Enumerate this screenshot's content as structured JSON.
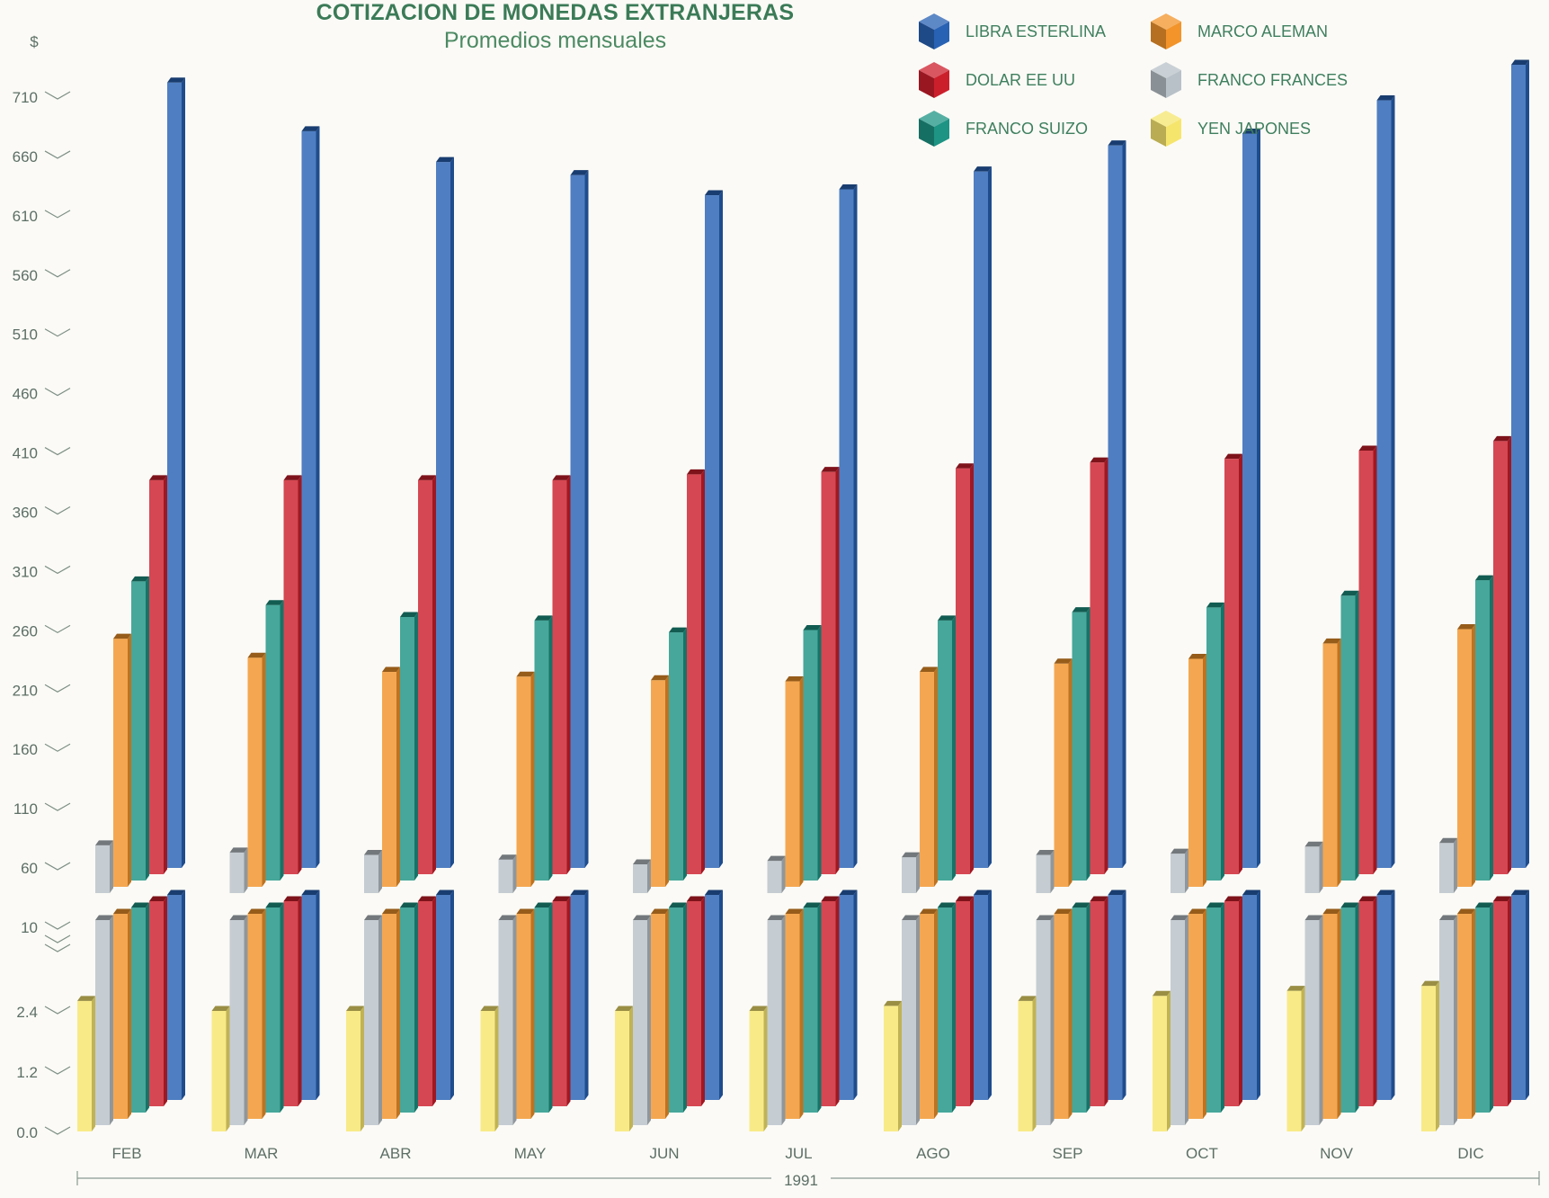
{
  "chart_data": {
    "type": "bar",
    "title": "COTIZACION DE MONEDAS EXTRANJERAS",
    "subtitle": "Promedios mensuales",
    "ylabel": "$",
    "xlabel": "1991",
    "categories": [
      "FEB",
      "MAR",
      "ABR",
      "MAY",
      "JUN",
      "JUL",
      "AGO",
      "SEP",
      "OCT",
      "NOV",
      "DIC"
    ],
    "y_ticks_upper": [
      "710",
      "660",
      "610",
      "560",
      "510",
      "460",
      "410",
      "360",
      "310",
      "260",
      "210",
      "160",
      "110",
      "60",
      "10"
    ],
    "y_ticks_lower": [
      "2.4",
      "1.2",
      "0.0"
    ],
    "axis_break_between": [
      2.4,
      10
    ],
    "legend_placement": "top-right",
    "grid": false,
    "series": [
      {
        "name": "YEN JAPONES",
        "color": "#f6e56d",
        "values": [
          2.6,
          2.4,
          2.4,
          2.4,
          2.4,
          2.4,
          2.5,
          2.6,
          2.7,
          2.8,
          2.9
        ]
      },
      {
        "name": "FRANCO FRANCES",
        "color": "#b8c1c8",
        "values": [
          73,
          67,
          65,
          61,
          57,
          60,
          63,
          65,
          66,
          72,
          75
        ]
      },
      {
        "name": "MARCO ALEMAN",
        "color": "#f2942a",
        "values": [
          242,
          226,
          214,
          210,
          207,
          206,
          214,
          221,
          225,
          238,
          250
        ]
      },
      {
        "name": "FRANCO SUIZO",
        "color": "#1d9484",
        "values": [
          285,
          265,
          255,
          252,
          242,
          244,
          252,
          259,
          263,
          273,
          286
        ]
      },
      {
        "name": "DOLAR EE UU",
        "color": "#cc1f2c",
        "values": [
          365,
          365,
          365,
          365,
          370,
          372,
          375,
          380,
          383,
          390,
          398
        ]
      },
      {
        "name": "LIBRA ESTERLINA",
        "color": "#2862b4",
        "values": [
          695,
          654,
          628,
          617,
          600,
          605,
          620,
          642,
          652,
          680,
          710
        ]
      }
    ]
  },
  "legend_column_order": [
    "LIBRA ESTERLINA",
    "DOLAR EE UU",
    "FRANCO SUIZO",
    "MARCO ALEMAN",
    "FRANCO FRANCES",
    "YEN JAPONES"
  ]
}
